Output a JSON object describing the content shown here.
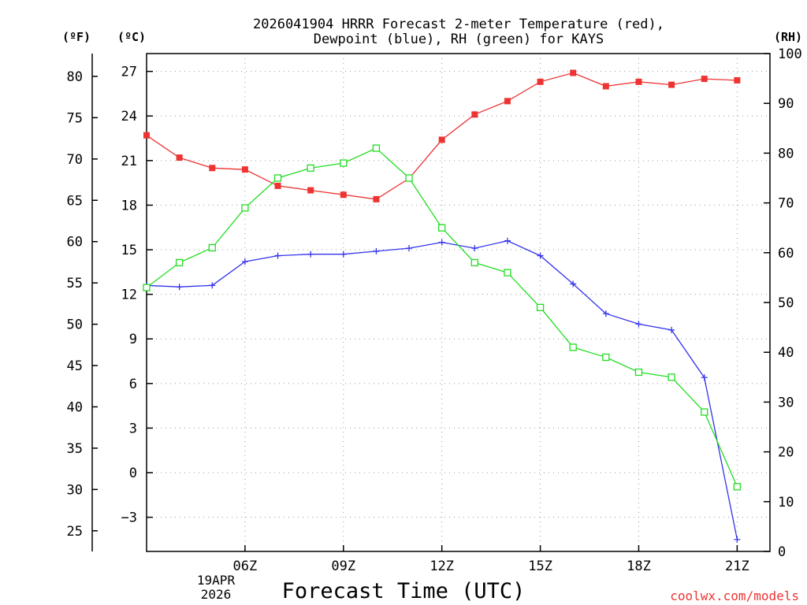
{
  "chart_data": {
    "type": "line",
    "title_line1": "2026041904 HRRR Forecast 2-meter Temperature (red),",
    "title_line2": "Dewpoint (blue), RH (green) for KAYS",
    "xlabel": "Forecast Time (UTC)",
    "watermark": "coolwx.com/models",
    "unit_f": "(ºF)",
    "unit_c": "(ºC)",
    "unit_rh": "(RH)",
    "x": [
      3,
      4,
      5,
      6,
      7,
      8,
      9,
      10,
      11,
      12,
      13,
      14,
      15,
      16,
      17,
      18,
      19,
      20,
      21,
      22
    ],
    "xlim": [
      3,
      22
    ],
    "x_ticks": [
      {
        "x": 6,
        "label": "06Z"
      },
      {
        "x": 9,
        "label": "09Z"
      },
      {
        "x": 12,
        "label": "12Z"
      },
      {
        "x": 15,
        "label": "15Z"
      },
      {
        "x": 18,
        "label": "18Z"
      },
      {
        "x": 21,
        "label": "21Z"
      }
    ],
    "date_label_line1": "19APR",
    "date_label_line2": "2026",
    "ylim_c": [
      -5.3,
      28.2
    ],
    "ylim_f": [
      22.5,
      82.76
    ],
    "ylim_rh": [
      0,
      100
    ],
    "c_ticks": [
      "27",
      "24",
      "21",
      "18",
      "15",
      "12",
      "9",
      "6",
      "3",
      "0",
      "−3"
    ],
    "c_tick_values": [
      27,
      24,
      21,
      18,
      15,
      12,
      9,
      6,
      3,
      0,
      -3
    ],
    "f_ticks": [
      "80",
      "75",
      "70",
      "65",
      "60",
      "55",
      "50",
      "45",
      "40",
      "35",
      "30",
      "25"
    ],
    "f_tick_values": [
      80,
      75,
      70,
      65,
      60,
      55,
      50,
      45,
      40,
      35,
      30,
      25
    ],
    "rh_ticks": [
      "100",
      "90",
      "80",
      "70",
      "60",
      "50",
      "40",
      "30",
      "20",
      "10",
      "0"
    ],
    "rh_tick_values": [
      100,
      90,
      80,
      70,
      60,
      50,
      40,
      30,
      20,
      10,
      0
    ],
    "series": [
      {
        "name": "2-meter Temperature",
        "axis": "c",
        "color": "#ee3333",
        "marker": "filled-square",
        "values": [
          22.7,
          21.2,
          20.5,
          20.4,
          19.3,
          19.0,
          18.7,
          18.4,
          19.8,
          22.4,
          24.1,
          25.0,
          26.3,
          26.9,
          26.0,
          26.3,
          26.1,
          26.5,
          26.4,
          null
        ]
      },
      {
        "name": "Dewpoint",
        "axis": "c",
        "color": "#3333ee",
        "marker": "plus",
        "values": [
          12.6,
          12.5,
          12.6,
          14.2,
          14.6,
          14.7,
          14.7,
          14.9,
          15.1,
          15.5,
          15.1,
          15.6,
          14.6,
          12.7,
          10.7,
          10.0,
          9.6,
          6.4,
          -4.5,
          null
        ]
      },
      {
        "name": "RH",
        "axis": "rh",
        "color": "#22dd22",
        "marker": "open-square",
        "values": [
          53,
          58,
          61,
          69,
          75,
          77,
          78,
          81,
          75,
          65,
          58,
          56,
          49,
          41,
          39,
          36,
          35,
          28,
          13,
          null
        ]
      }
    ]
  }
}
